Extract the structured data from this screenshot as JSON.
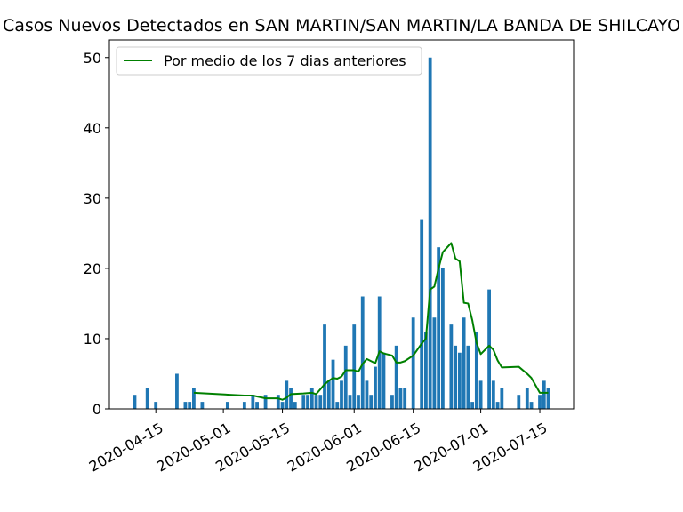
{
  "chart_data": {
    "type": "bar",
    "title": "Casos Nuevos Detectados en SAN MARTIN/SAN MARTIN/LA BANDA DE SHILCAYO",
    "xlabel": "",
    "ylabel": "",
    "x_range": [
      "2020-04-04",
      "2020-07-23"
    ],
    "ylim": [
      0,
      52.5
    ],
    "y_ticks": [
      0,
      10,
      20,
      30,
      40,
      50
    ],
    "x_ticks": [
      "2020-04-15",
      "2020-05-01",
      "2020-05-15",
      "2020-06-01",
      "2020-06-15",
      "2020-07-01",
      "2020-07-15"
    ],
    "grid": false,
    "legend": {
      "placement": "upper-left"
    },
    "colors": {
      "bars": "#1f77b4",
      "line": "#008000"
    },
    "series": [
      {
        "kind": "bar",
        "points": [
          [
            "2020-04-10",
            2
          ],
          [
            "2020-04-13",
            3
          ],
          [
            "2020-04-15",
            1
          ],
          [
            "2020-04-20",
            5
          ],
          [
            "2020-04-22",
            1
          ],
          [
            "2020-04-23",
            1
          ],
          [
            "2020-04-24",
            3
          ],
          [
            "2020-04-26",
            1
          ],
          [
            "2020-05-02",
            1
          ],
          [
            "2020-05-06",
            1
          ],
          [
            "2020-05-08",
            2
          ],
          [
            "2020-05-09",
            1
          ],
          [
            "2020-05-11",
            2
          ],
          [
            "2020-05-14",
            2
          ],
          [
            "2020-05-15",
            1
          ],
          [
            "2020-05-16",
            4
          ],
          [
            "2020-05-17",
            3
          ],
          [
            "2020-05-18",
            1
          ],
          [
            "2020-05-20",
            2
          ],
          [
            "2020-05-21",
            2
          ],
          [
            "2020-05-22",
            3
          ],
          [
            "2020-05-23",
            2
          ],
          [
            "2020-05-24",
            2
          ],
          [
            "2020-05-25",
            12
          ],
          [
            "2020-05-26",
            4
          ],
          [
            "2020-05-27",
            7
          ],
          [
            "2020-05-28",
            1
          ],
          [
            "2020-05-29",
            4
          ],
          [
            "2020-05-30",
            9
          ],
          [
            "2020-05-31",
            2
          ],
          [
            "2020-06-01",
            12
          ],
          [
            "2020-06-02",
            2
          ],
          [
            "2020-06-03",
            16
          ],
          [
            "2020-06-04",
            4
          ],
          [
            "2020-06-05",
            2
          ],
          [
            "2020-06-06",
            6
          ],
          [
            "2020-06-07",
            16
          ],
          [
            "2020-06-08",
            8
          ],
          [
            "2020-06-10",
            2
          ],
          [
            "2020-06-11",
            9
          ],
          [
            "2020-06-12",
            3
          ],
          [
            "2020-06-13",
            3
          ],
          [
            "2020-06-15",
            13
          ],
          [
            "2020-06-17",
            27
          ],
          [
            "2020-06-18",
            11
          ],
          [
            "2020-06-19",
            50
          ],
          [
            "2020-06-20",
            13
          ],
          [
            "2020-06-21",
            23
          ],
          [
            "2020-06-22",
            20
          ],
          [
            "2020-06-24",
            12
          ],
          [
            "2020-06-25",
            9
          ],
          [
            "2020-06-26",
            8
          ],
          [
            "2020-06-27",
            13
          ],
          [
            "2020-06-28",
            9
          ],
          [
            "2020-06-29",
            1
          ],
          [
            "2020-06-30",
            11
          ],
          [
            "2020-07-01",
            4
          ],
          [
            "2020-07-03",
            17
          ],
          [
            "2020-07-04",
            4
          ],
          [
            "2020-07-05",
            1
          ],
          [
            "2020-07-06",
            3
          ],
          [
            "2020-07-10",
            2
          ],
          [
            "2020-07-12",
            3
          ],
          [
            "2020-07-13",
            1
          ],
          [
            "2020-07-15",
            2
          ],
          [
            "2020-07-16",
            4
          ],
          [
            "2020-07-17",
            3
          ]
        ]
      },
      {
        "kind": "line",
        "name": "Por medio de los 7 dias anteriores",
        "points": [
          [
            "2020-04-24",
            2.3
          ],
          [
            "2020-05-06",
            1.9
          ],
          [
            "2020-05-08",
            1.9
          ],
          [
            "2020-05-11",
            1.5
          ],
          [
            "2020-05-14",
            1.5
          ],
          [
            "2020-05-15",
            1.3
          ],
          [
            "2020-05-16",
            1.6
          ],
          [
            "2020-05-17",
            2.1
          ],
          [
            "2020-05-20",
            2.2
          ],
          [
            "2020-05-22",
            2.3
          ],
          [
            "2020-05-23",
            2.1
          ],
          [
            "2020-05-25",
            3.5
          ],
          [
            "2020-05-26",
            4.0
          ],
          [
            "2020-05-27",
            4.4
          ],
          [
            "2020-05-28",
            4.3
          ],
          [
            "2020-05-29",
            4.6
          ],
          [
            "2020-05-30",
            5.5
          ],
          [
            "2020-06-01",
            5.5
          ],
          [
            "2020-06-02",
            5.3
          ],
          [
            "2020-06-03",
            6.4
          ],
          [
            "2020-06-04",
            7.1
          ],
          [
            "2020-06-05",
            6.8
          ],
          [
            "2020-06-06",
            6.5
          ],
          [
            "2020-06-07",
            8.2
          ],
          [
            "2020-06-08",
            7.9
          ],
          [
            "2020-06-10",
            7.6
          ],
          [
            "2020-06-11",
            6.6
          ],
          [
            "2020-06-12",
            6.6
          ],
          [
            "2020-06-13",
            6.8
          ],
          [
            "2020-06-15",
            7.6
          ],
          [
            "2020-06-17",
            9.3
          ],
          [
            "2020-06-18",
            10.0
          ],
          [
            "2020-06-19",
            17.0
          ],
          [
            "2020-06-20",
            17.4
          ],
          [
            "2020-06-21",
            20.0
          ],
          [
            "2020-06-22",
            22.3
          ],
          [
            "2020-06-24",
            23.6
          ],
          [
            "2020-06-25",
            21.4
          ],
          [
            "2020-06-26",
            21.0
          ],
          [
            "2020-06-27",
            15.1
          ],
          [
            "2020-06-28",
            15.0
          ],
          [
            "2020-06-29",
            12.6
          ],
          [
            "2020-06-30",
            9.4
          ],
          [
            "2020-07-01",
            7.8
          ],
          [
            "2020-07-03",
            9.0
          ],
          [
            "2020-07-04",
            8.4
          ],
          [
            "2020-07-05",
            6.9
          ],
          [
            "2020-07-06",
            5.9
          ],
          [
            "2020-07-10",
            6.0
          ],
          [
            "2020-07-12",
            5.0
          ],
          [
            "2020-07-13",
            4.4
          ],
          [
            "2020-07-15",
            2.3
          ],
          [
            "2020-07-16",
            2.3
          ],
          [
            "2020-07-17",
            2.3
          ]
        ]
      }
    ]
  }
}
